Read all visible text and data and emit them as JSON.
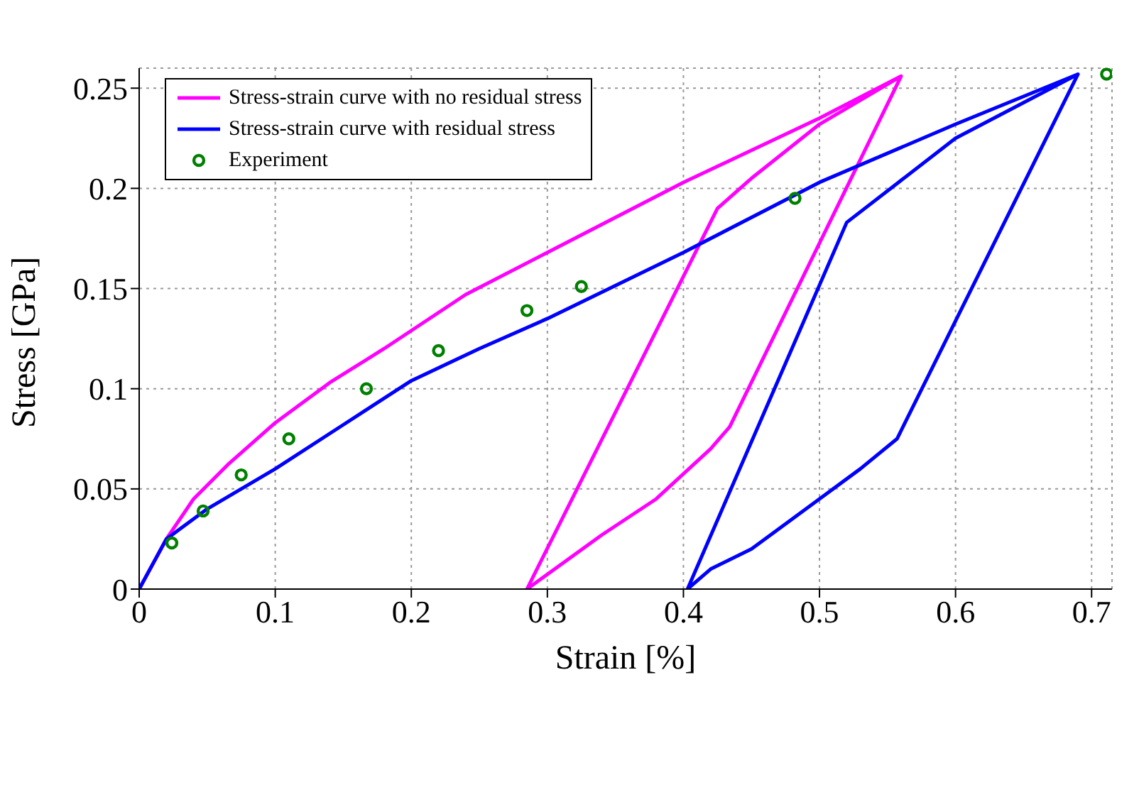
{
  "chart_data": {
    "type": "line",
    "xlabel": "Strain [%]",
    "ylabel": "Stress [GPa]",
    "xlim": [
      0,
      0.715
    ],
    "ylim": [
      0,
      0.26
    ],
    "xticks": [
      0,
      0.1,
      0.2,
      0.3,
      0.4,
      0.5,
      0.6,
      0.7
    ],
    "yticks": [
      0,
      0.05,
      0.1,
      0.15,
      0.2,
      0.25
    ],
    "grid": true,
    "legend": "top left",
    "series": [
      {
        "name": "Stress-strain curve with no residual stress",
        "color": "#ff00ff",
        "marker": "none",
        "x": [
          0,
          0.02,
          0.04,
          0.065,
          0.1,
          0.14,
          0.18,
          0.24,
          0.3,
          0.4,
          0.5,
          0.56,
          0.434,
          0.42,
          0.38,
          0.34,
          0.285,
          0.425,
          0.45,
          0.5,
          0.56
        ],
        "values": [
          0,
          0.025,
          0.045,
          0.062,
          0.083,
          0.103,
          0.12,
          0.147,
          0.168,
          0.203,
          0.235,
          0.256,
          0.081,
          0.07,
          0.045,
          0.027,
          0,
          0.19,
          0.205,
          0.232,
          0.256
        ]
      },
      {
        "name": "Stress-strain curve with residual stress",
        "color": "#0000ff",
        "marker": "none",
        "x": [
          0,
          0.02,
          0.05,
          0.1,
          0.15,
          0.2,
          0.25,
          0.3,
          0.4,
          0.5,
          0.6,
          0.69,
          0.557,
          0.53,
          0.5,
          0.45,
          0.42,
          0.403,
          0.52,
          0.6,
          0.69
        ],
        "values": [
          0,
          0.025,
          0.04,
          0.06,
          0.082,
          0.104,
          0.12,
          0.135,
          0.168,
          0.203,
          0.232,
          0.257,
          0.075,
          0.06,
          0.045,
          0.02,
          0.01,
          0,
          0.183,
          0.225,
          0.257
        ]
      },
      {
        "name": "Experiment",
        "type": "scatter",
        "color": "#008000",
        "marker": "circle",
        "x": [
          0.024,
          0.047,
          0.075,
          0.11,
          0.167,
          0.22,
          0.285,
          0.325,
          0.482,
          0.711
        ],
        "values": [
          0.023,
          0.039,
          0.057,
          0.075,
          0.1,
          0.119,
          0.139,
          0.151,
          0.195,
          0.257
        ]
      }
    ]
  }
}
